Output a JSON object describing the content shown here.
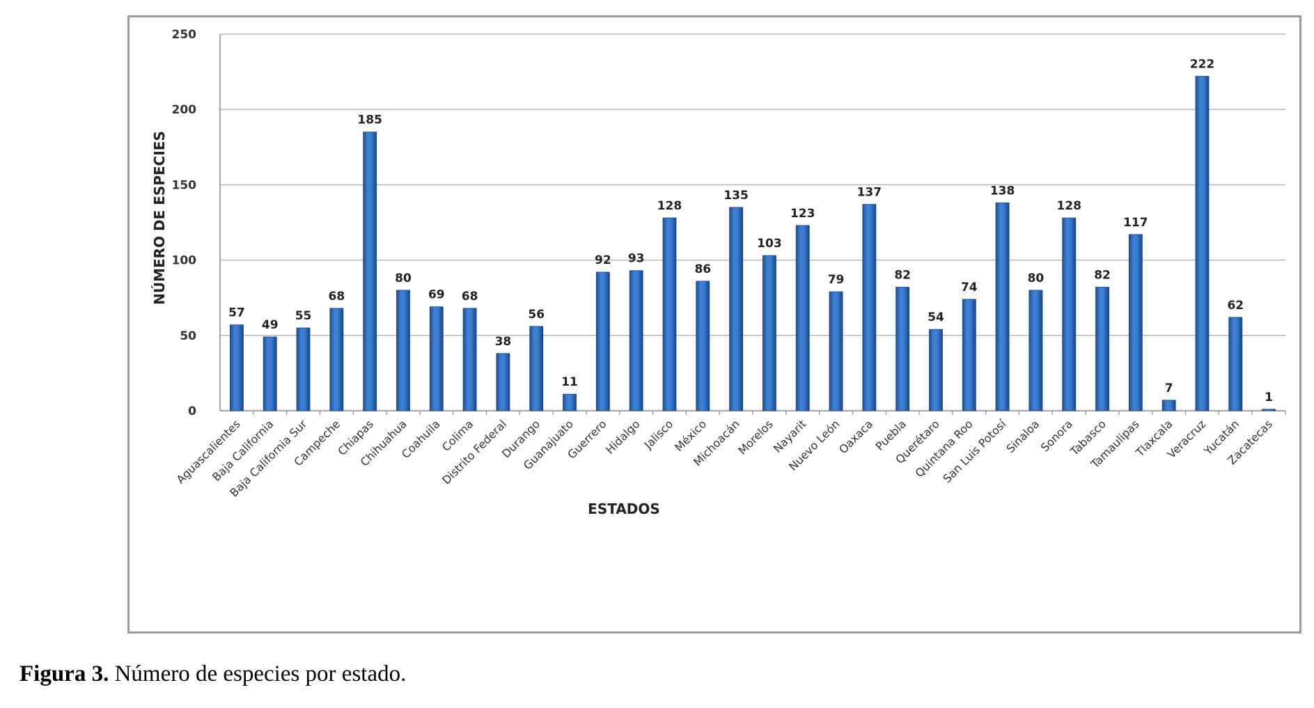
{
  "chart_data": {
    "type": "bar",
    "title": "",
    "xlabel": "ESTADOS",
    "ylabel": "NÚMERO DE ESPECIES",
    "ylim": [
      0,
      250
    ],
    "yticks": [
      0,
      50,
      100,
      150,
      200,
      250
    ],
    "grid": true,
    "categories": [
      "Aguascalientes",
      "Baja California",
      "Baja California Sur",
      "Campeche",
      "Chiapas",
      "Chihuahua",
      "Coahuila",
      "Colima",
      "Distrito Federal",
      "Durango",
      "Guanajuato",
      "Guerrero",
      "Hidalgo",
      "Jalisco",
      "México",
      "Michoacán",
      "Morelos",
      "Nayarit",
      "Nuevo León",
      "Oaxaca",
      "Puebla",
      "Querétaro",
      "Quintana Roo",
      "San Luis Potosí",
      "Sinaloa",
      "Sonora",
      "Tabasco",
      "Tamaulipas",
      "Tlaxcala",
      "Veracruz",
      "Yucatán",
      "Zacatecas"
    ],
    "values": [
      57,
      49,
      55,
      68,
      185,
      80,
      69,
      68,
      38,
      56,
      11,
      92,
      93,
      128,
      86,
      135,
      103,
      123,
      79,
      137,
      82,
      54,
      74,
      138,
      80,
      128,
      82,
      117,
      7,
      222,
      62,
      1
    ],
    "bar_color": "#2f6ec0"
  },
  "caption": {
    "label": "Figura 3.",
    "text": " Número de especies por estado."
  }
}
